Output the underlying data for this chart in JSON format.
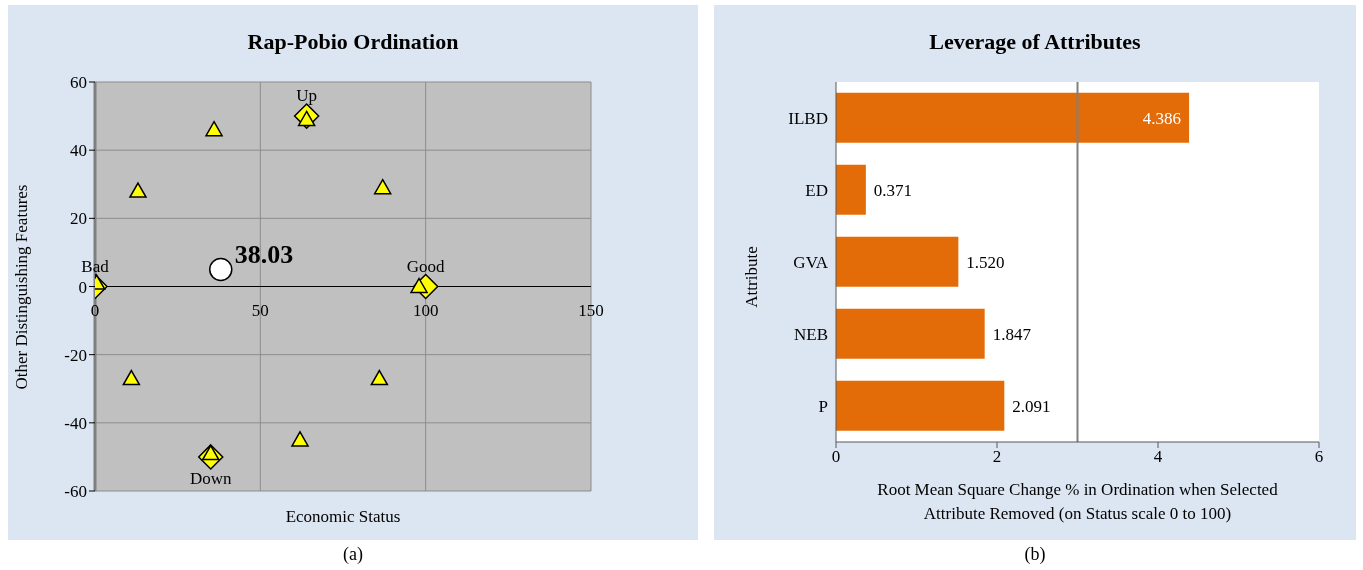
{
  "chart_data": [
    {
      "type": "scatter",
      "title": "Rap-Pobio Ordination",
      "xlabel": "Economic Status",
      "ylabel": "Other Distinguishing Features",
      "xlim": [
        0,
        150
      ],
      "xticks": [
        0,
        50,
        100,
        150
      ],
      "ylim": [
        -60,
        60
      ],
      "yticks": [
        -60,
        -40,
        -20,
        0,
        20,
        40,
        60
      ],
      "grid": true,
      "series": [
        {
          "marker": "diamond",
          "color": "#ffff00",
          "x": [
            0,
            100,
            64,
            35
          ],
          "values": [
            0,
            0,
            50,
            -50
          ]
        },
        {
          "marker": "triangle",
          "color": "#ffff00",
          "x": [
            0.5,
            98,
            64,
            35,
            36,
            13,
            87,
            11,
            86,
            62
          ],
          "values": [
            1,
            0,
            49,
            -49,
            46,
            28,
            29,
            -27,
            -27,
            -45
          ]
        },
        {
          "marker": "circle",
          "color": "#ffffff",
          "x": [
            38.03
          ],
          "values": [
            5
          ]
        }
      ],
      "annotations": [
        {
          "text": "38.03",
          "x": 38.03,
          "y": 5
        },
        {
          "text": "Bad",
          "x": 0,
          "y": 0
        },
        {
          "text": "Good",
          "x": 100,
          "y": 0
        },
        {
          "text": "Up",
          "x": 64,
          "y": 50
        },
        {
          "text": "Down",
          "x": 35,
          "y": -50
        },
        "(a)"
      ]
    },
    {
      "type": "bar",
      "orientation": "horizontal",
      "title": "Leverage of Attributes",
      "xlabel": "Root Mean Square Change % in Ordination when Selected Attribute Removed (on Status scale 0 to 100)",
      "ylabel": "Attribute",
      "categories": [
        "ILBD",
        "ED",
        "GVA",
        "NEB",
        "P"
      ],
      "values": [
        4.386,
        0.371,
        1.52,
        1.847,
        2.091
      ],
      "value_labels": [
        "4.386",
        "0.371",
        "1.520",
        "1.847",
        "2.091"
      ],
      "color": "#e36c09",
      "xlim": [
        0,
        6
      ],
      "xticks": [
        0,
        2,
        4,
        6
      ],
      "ref_lines": [
        {
          "axis": "x",
          "value": 3,
          "color": "#808080"
        }
      ],
      "annotations": [
        "(b)"
      ]
    }
  ]
}
